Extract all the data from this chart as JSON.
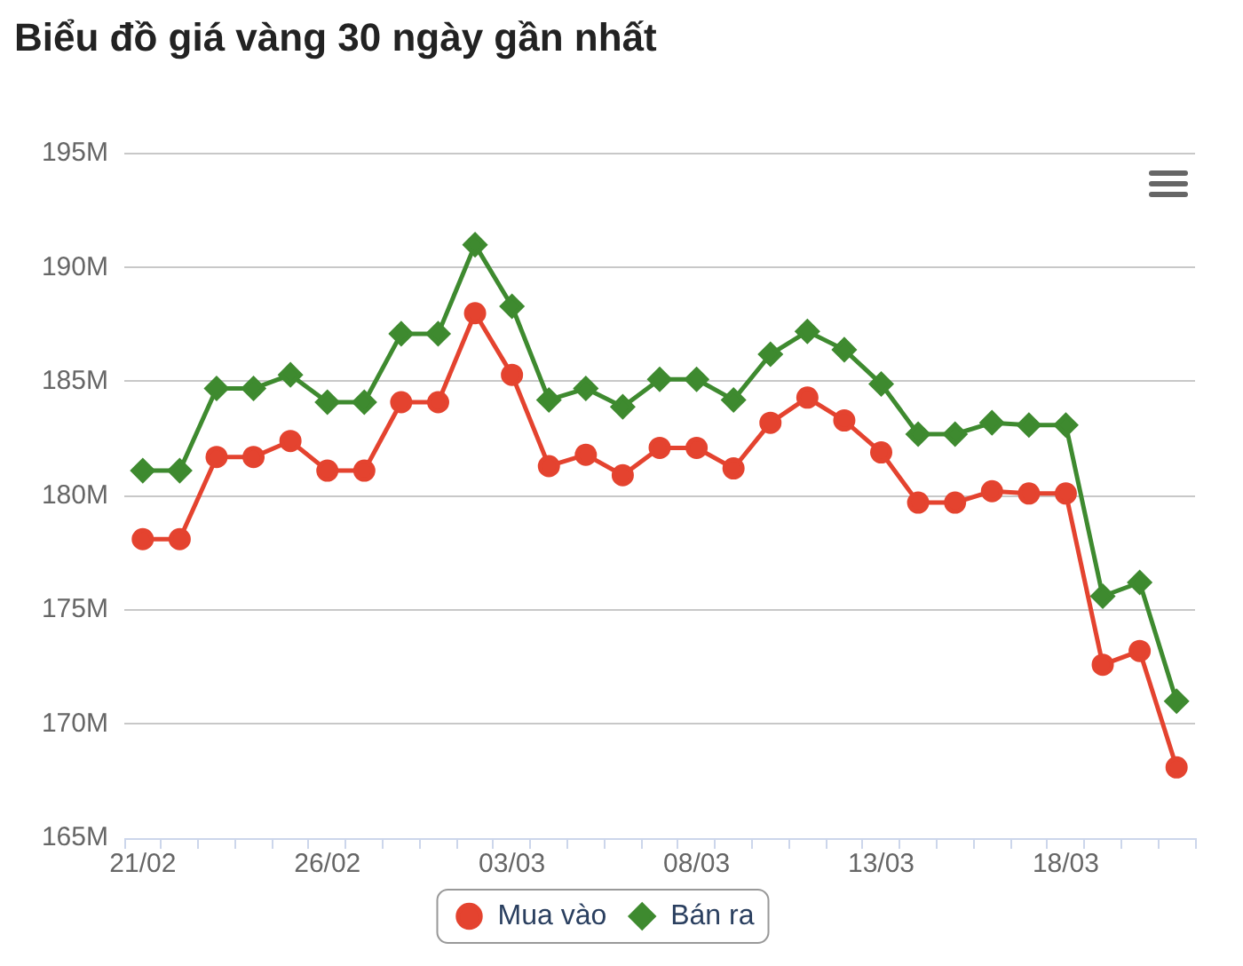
{
  "chart_data": {
    "type": "line",
    "title": "Biểu đồ giá vàng 30 ngày gần nhất",
    "categories": [
      "21/02",
      null,
      null,
      null,
      null,
      "26/02",
      null,
      null,
      null,
      null,
      "03/03",
      null,
      null,
      null,
      null,
      "08/03",
      null,
      null,
      null,
      null,
      "13/03",
      null,
      null,
      null,
      null,
      "18/03",
      null,
      null,
      null
    ],
    "series": [
      {
        "name": "Mua vào",
        "color": "#e4432f",
        "marker": "circle",
        "values": [
          178.1,
          178.1,
          181.7,
          181.7,
          182.4,
          181.1,
          181.1,
          184.1,
          184.1,
          188.0,
          185.3,
          181.3,
          181.8,
          180.9,
          182.1,
          182.1,
          181.2,
          183.2,
          184.3,
          183.3,
          181.9,
          179.7,
          179.7,
          180.2,
          180.1,
          180.1,
          172.6,
          173.2,
          168.1
        ]
      },
      {
        "name": "Bán ra",
        "color": "#3e8a2f",
        "marker": "diamond",
        "values": [
          181.1,
          181.1,
          184.7,
          184.7,
          185.3,
          184.1,
          184.1,
          187.1,
          187.1,
          191.0,
          188.3,
          184.2,
          184.7,
          183.9,
          185.1,
          185.1,
          184.2,
          186.2,
          187.2,
          186.4,
          184.9,
          182.7,
          182.7,
          183.2,
          183.1,
          183.1,
          175.6,
          176.2,
          171.0
        ]
      }
    ],
    "ylim": [
      165,
      195
    ],
    "yticks": [
      {
        "value": 165,
        "label": "165M"
      },
      {
        "value": 170,
        "label": "170M"
      },
      {
        "value": 175,
        "label": "175M"
      },
      {
        "value": 180,
        "label": "180M"
      },
      {
        "value": 185,
        "label": "185M"
      },
      {
        "value": 190,
        "label": "190M"
      },
      {
        "value": 195,
        "label": "195M"
      }
    ],
    "grid": "y",
    "legend": "bottom"
  }
}
